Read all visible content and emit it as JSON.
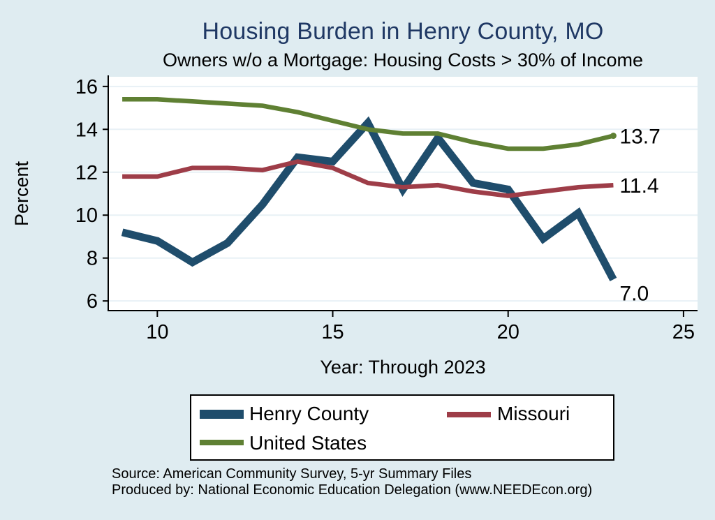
{
  "page": {
    "title": "Housing Burden in Henry County, MO",
    "subtitle": "Owners w/o a Mortgage: Housing Costs > 30% of Income",
    "source_lines": [
      "Source: American Community Survey, 5-yr Summary Files",
      "Produced by: National Economic Education Delegation (www.NEEDEcon.org)"
    ]
  },
  "colors": {
    "background": "#dfecf1",
    "title": "#1f3864",
    "plot_background": "#ffffff",
    "gridline": "#e8f1f6",
    "axis": "#000000"
  },
  "chart_data": {
    "type": "line",
    "x": [
      9,
      10,
      11,
      12,
      13,
      14,
      15,
      16,
      17,
      18,
      19,
      20,
      21,
      22,
      23
    ],
    "series": [
      {
        "name": "Henry County",
        "color": "#1f4d6c",
        "values": [
          9.2,
          8.8,
          7.8,
          8.7,
          10.5,
          12.7,
          12.5,
          14.3,
          11.2,
          13.6,
          11.5,
          11.2,
          8.9,
          10.1,
          7.0
        ],
        "end_label": "7.0"
      },
      {
        "name": "Missouri",
        "color": "#9e3d48",
        "values": [
          11.8,
          11.8,
          12.2,
          12.2,
          12.1,
          12.5,
          12.2,
          11.5,
          11.3,
          11.4,
          11.1,
          10.9,
          11.1,
          11.3,
          11.4
        ],
        "end_label": "11.4"
      },
      {
        "name": "United States",
        "color": "#5f8033",
        "values": [
          15.4,
          15.4,
          15.3,
          15.2,
          15.1,
          14.8,
          14.4,
          14.0,
          13.8,
          13.8,
          13.4,
          13.1,
          13.1,
          13.3,
          13.7
        ],
        "end_label": "13.7",
        "end_marker": true
      }
    ],
    "xlabel": "Year: Through 2023",
    "ylabel": "Percent",
    "xticks": [
      10,
      15,
      20,
      25
    ],
    "yticks": [
      6,
      8,
      10,
      12,
      14,
      16
    ],
    "xlim": [
      8.6,
      25.4
    ],
    "ylim": [
      5.55,
      16.45
    ],
    "grid": true,
    "legend_position": "bottom"
  }
}
